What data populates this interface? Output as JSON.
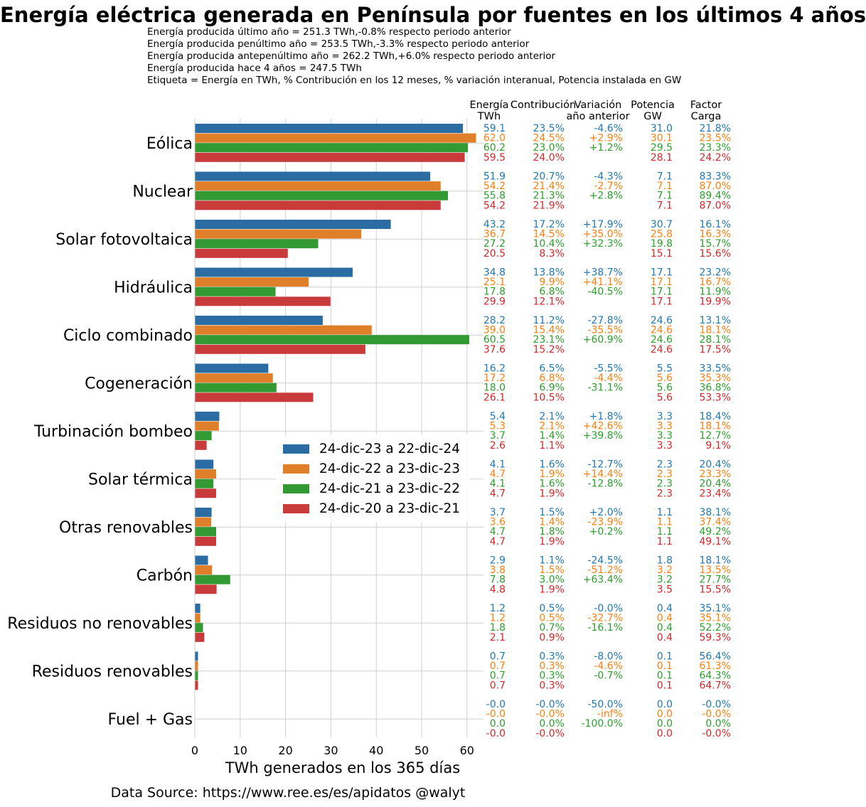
{
  "title": "Energía eléctrica generada en Península por fuentes en los últimos 4 años",
  "subtitle_lines": [
    "Energía producida último año  = 251.3 TWh,-0.8% respecto periodo anterior",
    "Energía producida penúltimo año  = 253.5 TWh,-3.3% respecto periodo anterior",
    "Energía producida antepenúltimo año  = 262.2 TWh,+6.0% respecto periodo anterior",
    "Energía producida hace 4 años  = 247.5 TWh",
    "Etiqueta =  Energía en TWh, % Contribución en los 12 meses, % variación interanual, Potencia instalada en GW"
  ],
  "source": "Data Source: https://www.ree.es/es/apidatos   @walyt",
  "chart_data": {
    "type": "bar",
    "orientation": "horizontal",
    "xlabel": "TWh generados en los 365 días",
    "xlim": [
      0,
      62
    ],
    "xticks": [
      "0",
      "10",
      "20",
      "30",
      "40",
      "50",
      "60"
    ],
    "grid": true,
    "legend_position": "center",
    "colors": [
      "#2b6da3",
      "#e07f2a",
      "#339933",
      "#c93a3a"
    ],
    "label_colors": [
      "#1f77b4",
      "#ff7f0e",
      "#2ca02c",
      "#d62728"
    ],
    "series_names": [
      "24-dic-23 a 22-dic-24",
      "24-dic-22 a 23-dic-23",
      "24-dic-21 a 23-dic-22",
      "24-dic-20 a 23-dic-21"
    ],
    "column_headers": [
      [
        "Energía",
        "TWh"
      ],
      [
        "Contribución",
        ""
      ],
      [
        "Variación",
        "año anterior"
      ],
      [
        "Potencia",
        "GW"
      ],
      [
        "Factor",
        "Carga"
      ]
    ],
    "categories": [
      {
        "name": "Eólica",
        "values": [
          59.1,
          62.0,
          60.2,
          59.5
        ],
        "labels": [
          [
            "59.1",
            "23.5%",
            "-4.6%",
            "31.0",
            "21.8%"
          ],
          [
            "62.0",
            "24.5%",
            "+2.9%",
            "30.1",
            "23.5%"
          ],
          [
            "60.2",
            "23.0%",
            "+1.2%",
            "29.5",
            "23.3%"
          ],
          [
            "59.5",
            "24.0%",
            "",
            "28.1",
            "24.2%"
          ]
        ]
      },
      {
        "name": "Nuclear",
        "values": [
          51.9,
          54.2,
          55.8,
          54.2
        ],
        "labels": [
          [
            "51.9",
            "20.7%",
            "-4.3%",
            "7.1",
            "83.3%"
          ],
          [
            "54.2",
            "21.4%",
            "-2.7%",
            "7.1",
            "87.0%"
          ],
          [
            "55.8",
            "21.3%",
            "+2.8%",
            "7.1",
            "89.4%"
          ],
          [
            "54.2",
            "21.9%",
            "",
            "7.1",
            "87.0%"
          ]
        ]
      },
      {
        "name": "Solar fotovoltaica",
        "values": [
          43.2,
          36.7,
          27.2,
          20.5
        ],
        "labels": [
          [
            "43.2",
            "17.2%",
            "+17.9%",
            "30.7",
            "16.1%"
          ],
          [
            "36.7",
            "14.5%",
            "+35.0%",
            "25.8",
            "16.3%"
          ],
          [
            "27.2",
            "10.4%",
            "+32.3%",
            "19.8",
            "15.7%"
          ],
          [
            "20.5",
            "8.3%",
            "",
            "15.1",
            "15.6%"
          ]
        ]
      },
      {
        "name": "Hidráulica",
        "values": [
          34.8,
          25.1,
          17.8,
          29.9
        ],
        "labels": [
          [
            "34.8",
            "13.8%",
            "+38.7%",
            "17.1",
            "23.2%"
          ],
          [
            "25.1",
            "9.9%",
            "+41.1%",
            "17.1",
            "16.7%"
          ],
          [
            "17.8",
            "6.8%",
            "-40.5%",
            "17.1",
            "11.9%"
          ],
          [
            "29.9",
            "12.1%",
            "",
            "17.1",
            "19.9%"
          ]
        ]
      },
      {
        "name": "Ciclo combinado",
        "values": [
          28.2,
          39.0,
          60.5,
          37.6
        ],
        "labels": [
          [
            "28.2",
            "11.2%",
            "-27.8%",
            "24.6",
            "13.1%"
          ],
          [
            "39.0",
            "15.4%",
            "-35.5%",
            "24.6",
            "18.1%"
          ],
          [
            "60.5",
            "23.1%",
            "+60.9%",
            "24.6",
            "28.1%"
          ],
          [
            "37.6",
            "15.2%",
            "",
            "24.6",
            "17.5%"
          ]
        ]
      },
      {
        "name": "Cogeneración",
        "values": [
          16.2,
          17.2,
          18.0,
          26.1
        ],
        "labels": [
          [
            "16.2",
            "6.5%",
            "-5.5%",
            "5.5",
            "33.5%"
          ],
          [
            "17.2",
            "6.8%",
            "-4.4%",
            "5.6",
            "35.3%"
          ],
          [
            "18.0",
            "6.9%",
            "-31.1%",
            "5.6",
            "36.8%"
          ],
          [
            "26.1",
            "10.5%",
            "",
            "5.6",
            "53.3%"
          ]
        ]
      },
      {
        "name": "Turbinación bombeo",
        "values": [
          5.4,
          5.3,
          3.7,
          2.6
        ],
        "labels": [
          [
            "5.4",
            "2.1%",
            "+1.8%",
            "3.3",
            "18.4%"
          ],
          [
            "5.3",
            "2.1%",
            "+42.6%",
            "3.3",
            "18.1%"
          ],
          [
            "3.7",
            "1.4%",
            "+39.8%",
            "3.3",
            "12.7%"
          ],
          [
            "2.6",
            "1.1%",
            "",
            "3.3",
            "9.1%"
          ]
        ]
      },
      {
        "name": "Solar térmica",
        "values": [
          4.1,
          4.7,
          4.1,
          4.7
        ],
        "labels": [
          [
            "4.1",
            "1.6%",
            "-12.7%",
            "2.3",
            "20.4%"
          ],
          [
            "4.7",
            "1.9%",
            "+14.4%",
            "2.3",
            "23.3%"
          ],
          [
            "4.1",
            "1.6%",
            "-12.8%",
            "2.3",
            "20.4%"
          ],
          [
            "4.7",
            "1.9%",
            "",
            "2.3",
            "23.4%"
          ]
        ]
      },
      {
        "name": "Otras renovables",
        "values": [
          3.7,
          3.6,
          4.7,
          4.7
        ],
        "labels": [
          [
            "3.7",
            "1.5%",
            "+2.0%",
            "1.1",
            "38.1%"
          ],
          [
            "3.6",
            "1.4%",
            "-23.9%",
            "1.1",
            "37.4%"
          ],
          [
            "4.7",
            "1.8%",
            "+0.2%",
            "1.1",
            "49.2%"
          ],
          [
            "4.7",
            "1.9%",
            "",
            "1.1",
            "49.1%"
          ]
        ]
      },
      {
        "name": "Carbón",
        "values": [
          2.9,
          3.8,
          7.8,
          4.8
        ],
        "labels": [
          [
            "2.9",
            "1.1%",
            "-24.5%",
            "1.8",
            "18.1%"
          ],
          [
            "3.8",
            "1.5%",
            "-51.2%",
            "3.2",
            "13.5%"
          ],
          [
            "7.8",
            "3.0%",
            "+63.4%",
            "3.2",
            "27.7%"
          ],
          [
            "4.8",
            "1.9%",
            "",
            "3.5",
            "15.5%"
          ]
        ]
      },
      {
        "name": "Residuos no renovables",
        "values": [
          1.2,
          1.2,
          1.8,
          2.1
        ],
        "labels": [
          [
            "1.2",
            "0.5%",
            "-0.0%",
            "0.4",
            "35.1%"
          ],
          [
            "1.2",
            "0.5%",
            "-32.7%",
            "0.4",
            "35.1%"
          ],
          [
            "1.8",
            "0.7%",
            "-16.1%",
            "0.4",
            "52.2%"
          ],
          [
            "2.1",
            "0.9%",
            "",
            "0.4",
            "59.3%"
          ]
        ]
      },
      {
        "name": "Residuos renovables",
        "values": [
          0.7,
          0.7,
          0.7,
          0.7
        ],
        "labels": [
          [
            "0.7",
            "0.3%",
            "-8.0%",
            "0.1",
            "56.4%"
          ],
          [
            "0.7",
            "0.3%",
            "-4.6%",
            "0.1",
            "61.3%"
          ],
          [
            "0.7",
            "0.3%",
            "-0.7%",
            "0.1",
            "64.3%"
          ],
          [
            "0.7",
            "0.3%",
            "",
            "0.1",
            "64.7%"
          ]
        ]
      },
      {
        "name": "Fuel + Gas",
        "values": [
          -0.0,
          -0.0,
          0.0,
          -0.0
        ],
        "labels": [
          [
            "-0.0",
            "-0.0%",
            "-50.0%",
            "0.0",
            "-0.0%"
          ],
          [
            "-0.0",
            "-0.0%",
            "-inf%",
            "0.0",
            "-0.0%"
          ],
          [
            "0.0",
            "0.0%",
            "-100.0%",
            "0.0",
            "0.0%"
          ],
          [
            "-0.0",
            "-0.0%",
            "",
            "0.0",
            "-0.0%"
          ]
        ]
      }
    ]
  }
}
